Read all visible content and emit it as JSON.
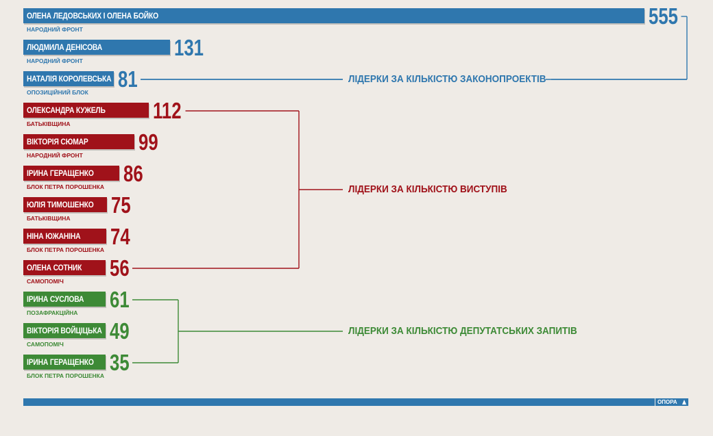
{
  "colors": {
    "blue": "#2f77ae",
    "red": "#a0121a",
    "green": "#3d8a36",
    "background": "#efebe6"
  },
  "chart_data": {
    "type": "bar",
    "orientation": "horizontal",
    "title": "",
    "xlabel": "",
    "ylabel": "",
    "groups": [
      {
        "label": "ЛІДЕРКИ ЗА КІЛЬКІСТЮ ЗАКОНОПРОЕКТІВ",
        "color": "#2f77ae",
        "items": [
          {
            "name": "ОЛЕНА ЛЕДОВСЬКИХ І ОЛЕНА БОЙКО",
            "party": "НАРОДНИЙ ФРОНТ",
            "value": 555
          },
          {
            "name": "ЛЮДМИЛА ДЕНІСОВА",
            "party": "НАРОДНИЙ ФРОНТ",
            "value": 131
          },
          {
            "name": "НАТАЛІЯ КОРОЛЕВСЬКА",
            "party": "ОПОЗИЦІЙНИЙ БЛОК",
            "value": 81
          }
        ]
      },
      {
        "label": "ЛІДЕРКИ ЗА КІЛЬКІСТЮ ВИСТУПІВ",
        "color": "#a0121a",
        "items": [
          {
            "name": "ОЛЕКСАНДРА КУЖЕЛЬ",
            "party": "БАТЬКІВЩИНА",
            "value": 112
          },
          {
            "name": "ВІКТОРІЯ СЮМАР",
            "party": "НАРОДНИЙ ФРОНТ",
            "value": 99
          },
          {
            "name": "ІРИНА ГЕРАЩЕНКО",
            "party": "БЛОК ПЕТРА ПОРОШЕНКА",
            "value": 86
          },
          {
            "name": "ЮЛІЯ ТИМОШЕНКО",
            "party": "БАТЬКІВЩИНА",
            "value": 75
          },
          {
            "name": "НІНА ЮЖАНІНА",
            "party": "БЛОК ПЕТРА ПОРОШЕНКА",
            "value": 74
          },
          {
            "name": "ОЛЕНА СОТНИК",
            "party": "САМОПОМІЧ",
            "value": 56
          }
        ]
      },
      {
        "label": "ЛІДЕРКИ ЗА КІЛЬКІСТЮ ДЕПУТАТСЬКИХ ЗАПИТІВ",
        "color": "#3d8a36",
        "items": [
          {
            "name": "ІРИНА СУСЛОВА",
            "party": "ПОЗАФРАКЦІЙНА",
            "value": 61
          },
          {
            "name": "ВІКТОРІЯ ВОЙЦІЦЬКА",
            "party": "САМОПОМІЧ",
            "value": 49
          },
          {
            "name": "ІРИНА ГЕРАЩЕНКО",
            "party": "БЛОК ПЕТРА ПОРОШЕНКА",
            "value": 35
          }
        ]
      }
    ]
  },
  "footer": {
    "logo_text": "ОПОРА",
    "logo_icon": "triangle-icon"
  }
}
